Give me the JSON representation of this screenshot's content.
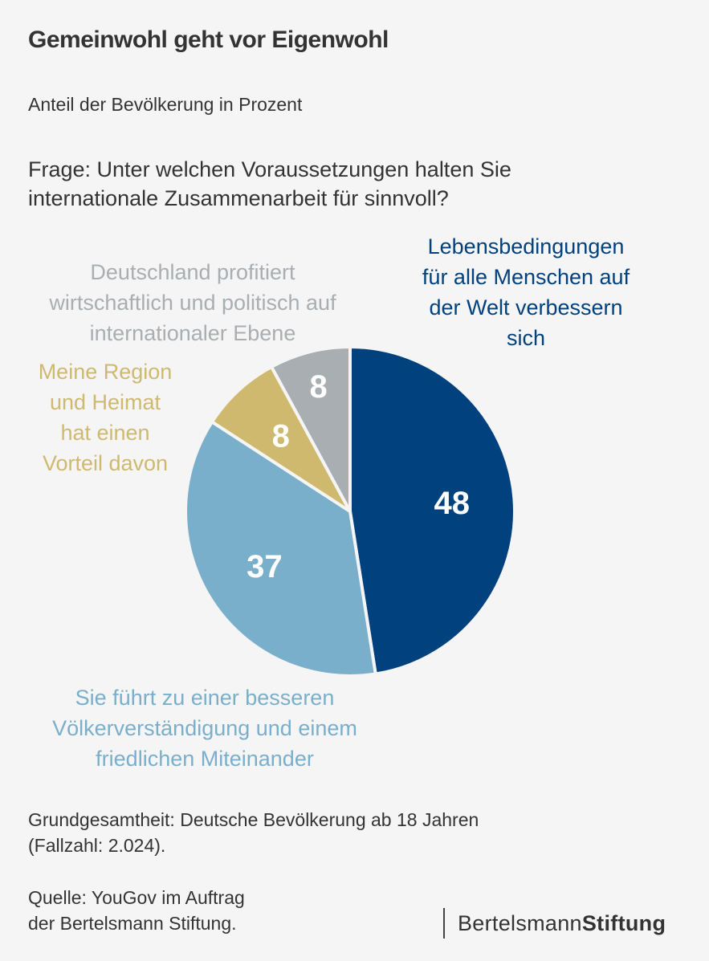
{
  "header": {
    "title": "Gemeinwohl geht vor Eigenwohl",
    "subtitle": "Anteil der Bevölkerung in Prozent",
    "question_line1": "Frage: Unter welchen Voraussetzungen halten Sie",
    "question_line2": "internationale Zusammenarbeit für sinnvoll?"
  },
  "chart_data": {
    "type": "pie",
    "title": "Gemeinwohl geht vor Eigenwohl",
    "subtitle": "Anteil der Bevölkerung in Prozent",
    "start": "top",
    "direction": "clockwise",
    "slices": [
      {
        "label": "Lebensbedingungen für alle Menschen auf der Welt verbessern sich",
        "label_lines": [
          "Lebensbedingungen",
          "für alle Menschen auf",
          "der Welt verbessern",
          "sich"
        ],
        "value": 48,
        "color": "#00417e",
        "label_color": "#00417e"
      },
      {
        "label": "Sie führt zu einer besseren Völkerverständigung und einem friedlichen Miteinander",
        "label_lines": [
          "Sie führt zu einer besseren",
          "Völkerverständigung und einem",
          "friedlichen Miteinander"
        ],
        "value": 37,
        "color": "#7aafcb",
        "label_color": "#7aafcb"
      },
      {
        "label": "Meine Region und Heimat hat einen Vorteil davon",
        "label_lines": [
          "Meine Region",
          "und Heimat",
          "hat einen",
          "Vorteil davon"
        ],
        "value": 8,
        "color": "#cfb96f",
        "label_color": "#cfb96f"
      },
      {
        "label": "Deutschland profitiert wirtschaftlich und politisch auf internationaler Ebene",
        "label_lines": [
          "Deutschland profitiert",
          "wirtschaftlich und politisch auf",
          "internationaler Ebene"
        ],
        "value": 8,
        "color": "#a8aeb1",
        "label_color": "#a8aeb1"
      }
    ],
    "value_label_color": "#ffffff",
    "separator_color": "#f5f5f5"
  },
  "footer": {
    "notes_line1": "Grundgesamtheit: Deutsche Bevölkerung ab 18 Jahren",
    "notes_line2": "(Fallzahl: 2.024).",
    "source_line1": "Quelle: YouGov im Auftrag",
    "source_line2": "der Bertelsmann Stiftung.",
    "logo_light": "Bertelsmann",
    "logo_bold": "Stiftung"
  }
}
